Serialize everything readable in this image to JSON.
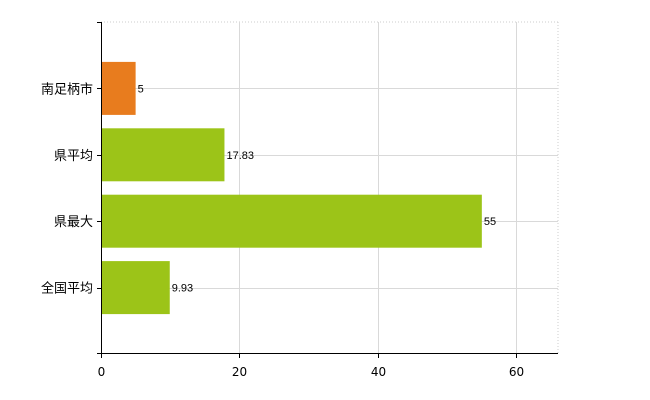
{
  "chart_data": {
    "type": "bar",
    "orientation": "horizontal",
    "categories": [
      "南足柄市",
      "県平均",
      "県最大",
      "全国平均"
    ],
    "values": [
      5,
      17.83,
      55,
      9.93
    ],
    "value_labels": [
      "5",
      "17.83",
      "55",
      "9.93"
    ],
    "bar_colors": [
      "#e87c1e",
      "#9cc418",
      "#9cc418",
      "#9cc418"
    ],
    "xlim": [
      0,
      66
    ],
    "xticks": [
      0,
      20,
      40,
      60
    ],
    "xtick_labels": [
      "0",
      "20",
      "40",
      "60"
    ],
    "grid": true,
    "legend": "none"
  }
}
